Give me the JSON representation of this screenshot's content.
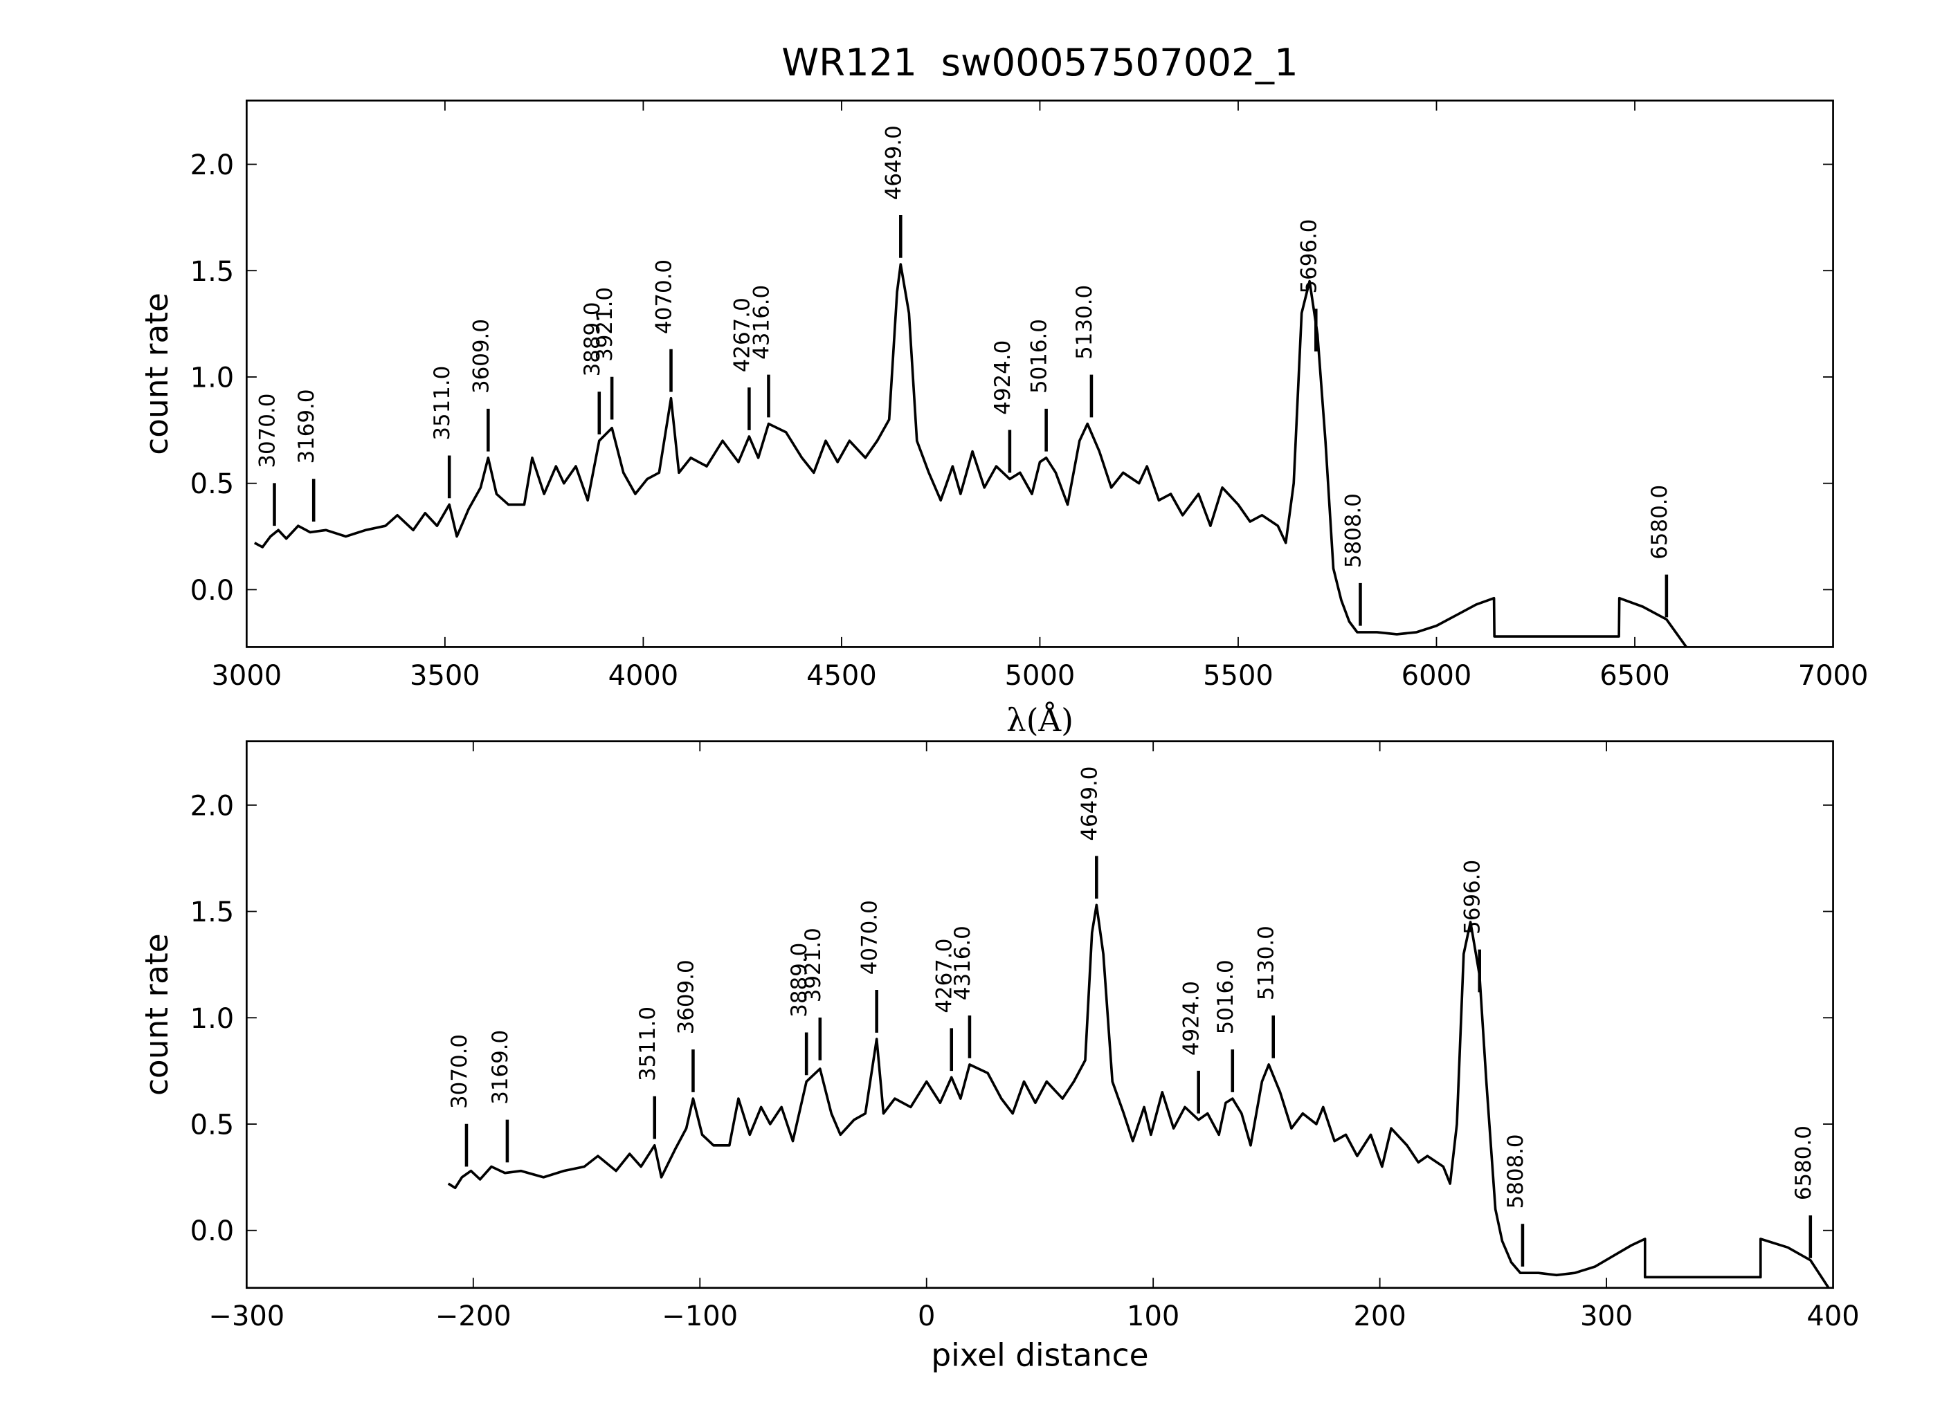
{
  "chart_data": [
    {
      "type": "line",
      "title": "WR121  sw00057507002_1",
      "xlabel": "λ(Å)",
      "ylabel": "count rate",
      "color": "#000000",
      "xlim": [
        3000,
        7000
      ],
      "ylim": [
        -0.27,
        2.3
      ],
      "xticks": [
        3000,
        3500,
        4000,
        4500,
        5000,
        5500,
        6000,
        6500,
        7000
      ],
      "yticks": [
        {
          "value": 0,
          "label": "0.0"
        },
        {
          "value": 0.5,
          "label": "0.5"
        },
        {
          "value": 1,
          "label": "1.0"
        },
        {
          "value": 1.5,
          "label": "1.5"
        },
        {
          "value": 2,
          "label": "2.0"
        }
      ],
      "x": [
        3020,
        3040,
        3060,
        3080,
        3100,
        3130,
        3160,
        3200,
        3250,
        3300,
        3350,
        3380,
        3420,
        3450,
        3480,
        3511,
        3530,
        3560,
        3590,
        3609,
        3630,
        3660,
        3700,
        3720,
        3750,
        3780,
        3800,
        3830,
        3860,
        3889,
        3921,
        3950,
        3980,
        4010,
        4040,
        4070,
        4090,
        4120,
        4160,
        4200,
        4240,
        4267,
        4290,
        4316,
        4360,
        4400,
        4430,
        4460,
        4490,
        4520,
        4560,
        4590,
        4620,
        4640,
        4649,
        4670,
        4690,
        4720,
        4750,
        4780,
        4800,
        4830,
        4860,
        4890,
        4924,
        4950,
        4980,
        5000,
        5016,
        5040,
        5070,
        5100,
        5120,
        5150,
        5180,
        5210,
        5250,
        5270,
        5300,
        5330,
        5360,
        5400,
        5430,
        5460,
        5500,
        5530,
        5560,
        5600,
        5620,
        5640,
        5660,
        5680,
        5700,
        5720,
        5740,
        5760,
        5780,
        5800,
        5850,
        5900,
        5950,
        6000,
        6050,
        6100,
        6145,
        6146,
        6460,
        6461,
        6520,
        6580,
        6630
      ],
      "values": [
        0.22,
        0.2,
        0.25,
        0.28,
        0.24,
        0.3,
        0.27,
        0.28,
        0.25,
        0.28,
        0.3,
        0.35,
        0.28,
        0.36,
        0.3,
        0.4,
        0.25,
        0.38,
        0.48,
        0.62,
        0.45,
        0.4,
        0.4,
        0.62,
        0.45,
        0.58,
        0.5,
        0.58,
        0.42,
        0.7,
        0.76,
        0.55,
        0.45,
        0.52,
        0.55,
        0.9,
        0.55,
        0.62,
        0.58,
        0.7,
        0.6,
        0.72,
        0.62,
        0.78,
        0.74,
        0.62,
        0.55,
        0.7,
        0.6,
        0.7,
        0.62,
        0.7,
        0.8,
        1.4,
        1.53,
        1.3,
        0.7,
        0.55,
        0.42,
        0.58,
        0.45,
        0.65,
        0.48,
        0.58,
        0.52,
        0.55,
        0.45,
        0.6,
        0.62,
        0.55,
        0.4,
        0.7,
        0.78,
        0.65,
        0.48,
        0.55,
        0.5,
        0.58,
        0.42,
        0.45,
        0.35,
        0.45,
        0.3,
        0.48,
        0.4,
        0.32,
        0.35,
        0.3,
        0.22,
        0.5,
        1.3,
        1.45,
        1.2,
        0.7,
        0.1,
        -0.05,
        -0.15,
        -0.2,
        -0.2,
        -0.21,
        -0.2,
        -0.17,
        -0.12,
        -0.07,
        -0.04,
        -0.22,
        -0.22,
        -0.04,
        -0.08,
        -0.14,
        -0.27
      ],
      "annotations": [
        {
          "label": "3070.0",
          "x": 3070,
          "y": 0.3
        },
        {
          "label": "3169.0",
          "x": 3169,
          "y": 0.32
        },
        {
          "label": "3511.0",
          "x": 3511,
          "y": 0.43
        },
        {
          "label": "3609.0",
          "x": 3609,
          "y": 0.65
        },
        {
          "label": "3889.0",
          "x": 3889,
          "y": 0.73
        },
        {
          "label": "3921.0",
          "x": 3921,
          "y": 0.8
        },
        {
          "label": "4070.0",
          "x": 4070,
          "y": 0.93
        },
        {
          "label": "4267.0",
          "x": 4267,
          "y": 0.75
        },
        {
          "label": "4316.0",
          "x": 4316,
          "y": 0.81
        },
        {
          "label": "4649.0",
          "x": 4649,
          "y": 1.56
        },
        {
          "label": "4924.0",
          "x": 4924,
          "y": 0.55
        },
        {
          "label": "5016.0",
          "x": 5016,
          "y": 0.65
        },
        {
          "label": "5130.0",
          "x": 5130,
          "y": 0.81
        },
        {
          "label": "5696.0",
          "x": 5696,
          "y": 1.12
        },
        {
          "label": "5808.0",
          "x": 5808,
          "y": -0.17
        },
        {
          "label": "6580.0",
          "x": 6580,
          "y": -0.13
        }
      ]
    },
    {
      "type": "line",
      "xlabel": "pixel distance",
      "ylabel": "count rate",
      "color": "#000000",
      "xlim": [
        -300,
        400
      ],
      "ylim": [
        -0.27,
        2.3
      ],
      "xticks": [
        {
          "value": -300,
          "label": "−300"
        },
        {
          "value": -200,
          "label": "−200"
        },
        {
          "value": -100,
          "label": "−100"
        },
        0,
        100,
        200,
        300,
        400
      ],
      "yticks": [
        {
          "value": 0,
          "label": "0.0"
        },
        {
          "value": 0.5,
          "label": "0.5"
        },
        {
          "value": 1,
          "label": "1.0"
        },
        {
          "value": 1.5,
          "label": "1.5"
        },
        {
          "value": 2,
          "label": "2.0"
        }
      ],
      "x": [
        -211,
        -208,
        -205,
        -201,
        -197,
        -192,
        -186,
        -179,
        -169,
        -160,
        -151,
        -145,
        -137,
        -131,
        -126,
        -120,
        -117,
        -111,
        -106,
        -103,
        -99,
        -94,
        -87,
        -83,
        -78,
        -73,
        -69,
        -64,
        -59,
        -53,
        -47,
        -42,
        -38,
        -32,
        -27,
        -22,
        -19,
        -14,
        -7,
        0,
        6,
        11,
        15,
        19,
        27,
        33,
        38,
        43,
        48,
        53,
        60,
        65,
        70,
        73,
        75,
        78,
        82,
        87,
        91,
        96,
        99,
        104,
        109,
        114,
        120,
        124,
        129,
        132,
        135,
        139,
        143,
        148,
        151,
        156,
        161,
        166,
        172,
        175,
        180,
        185,
        190,
        196,
        201,
        205,
        212,
        217,
        221,
        228,
        231,
        234,
        237,
        240,
        244,
        247,
        251,
        254,
        258,
        262,
        270,
        278,
        286,
        295,
        303,
        311,
        317,
        317,
        368,
        368,
        380,
        390,
        398
      ],
      "values": [
        0.22,
        0.2,
        0.25,
        0.28,
        0.24,
        0.3,
        0.27,
        0.28,
        0.25,
        0.28,
        0.3,
        0.35,
        0.28,
        0.36,
        0.3,
        0.4,
        0.25,
        0.38,
        0.48,
        0.62,
        0.45,
        0.4,
        0.4,
        0.62,
        0.45,
        0.58,
        0.5,
        0.58,
        0.42,
        0.7,
        0.76,
        0.55,
        0.45,
        0.52,
        0.55,
        0.9,
        0.55,
        0.62,
        0.58,
        0.7,
        0.6,
        0.72,
        0.62,
        0.78,
        0.74,
        0.62,
        0.55,
        0.7,
        0.6,
        0.7,
        0.62,
        0.7,
        0.8,
        1.4,
        1.53,
        1.3,
        0.7,
        0.55,
        0.42,
        0.58,
        0.45,
        0.65,
        0.48,
        0.58,
        0.52,
        0.55,
        0.45,
        0.6,
        0.62,
        0.55,
        0.4,
        0.7,
        0.78,
        0.65,
        0.48,
        0.55,
        0.5,
        0.58,
        0.42,
        0.45,
        0.35,
        0.45,
        0.3,
        0.48,
        0.4,
        0.32,
        0.35,
        0.3,
        0.22,
        0.5,
        1.3,
        1.45,
        1.2,
        0.7,
        0.1,
        -0.05,
        -0.15,
        -0.2,
        -0.2,
        -0.21,
        -0.2,
        -0.17,
        -0.12,
        -0.07,
        -0.04,
        -0.22,
        -0.22,
        -0.04,
        -0.08,
        -0.14,
        -0.27
      ],
      "annotations": [
        {
          "label": "3070.0",
          "x": -203,
          "y": 0.3
        },
        {
          "label": "3169.0",
          "x": -185,
          "y": 0.32
        },
        {
          "label": "3511.0",
          "x": -120,
          "y": 0.43
        },
        {
          "label": "3609.0",
          "x": -103,
          "y": 0.65
        },
        {
          "label": "3889.0",
          "x": -53,
          "y": 0.73
        },
        {
          "label": "3921.0",
          "x": -47,
          "y": 0.8
        },
        {
          "label": "4070.0",
          "x": -22,
          "y": 0.93
        },
        {
          "label": "4267.0",
          "x": 11,
          "y": 0.75
        },
        {
          "label": "4316.0",
          "x": 19,
          "y": 0.81
        },
        {
          "label": "4649.0",
          "x": 75,
          "y": 1.56
        },
        {
          "label": "4924.0",
          "x": 120,
          "y": 0.55
        },
        {
          "label": "5016.0",
          "x": 135,
          "y": 0.65
        },
        {
          "label": "5130.0",
          "x": 153,
          "y": 0.81
        },
        {
          "label": "5696.0",
          "x": 244,
          "y": 1.12
        },
        {
          "label": "5808.0",
          "x": 263,
          "y": -0.17
        },
        {
          "label": "6580.0",
          "x": 390,
          "y": -0.13
        }
      ]
    }
  ]
}
